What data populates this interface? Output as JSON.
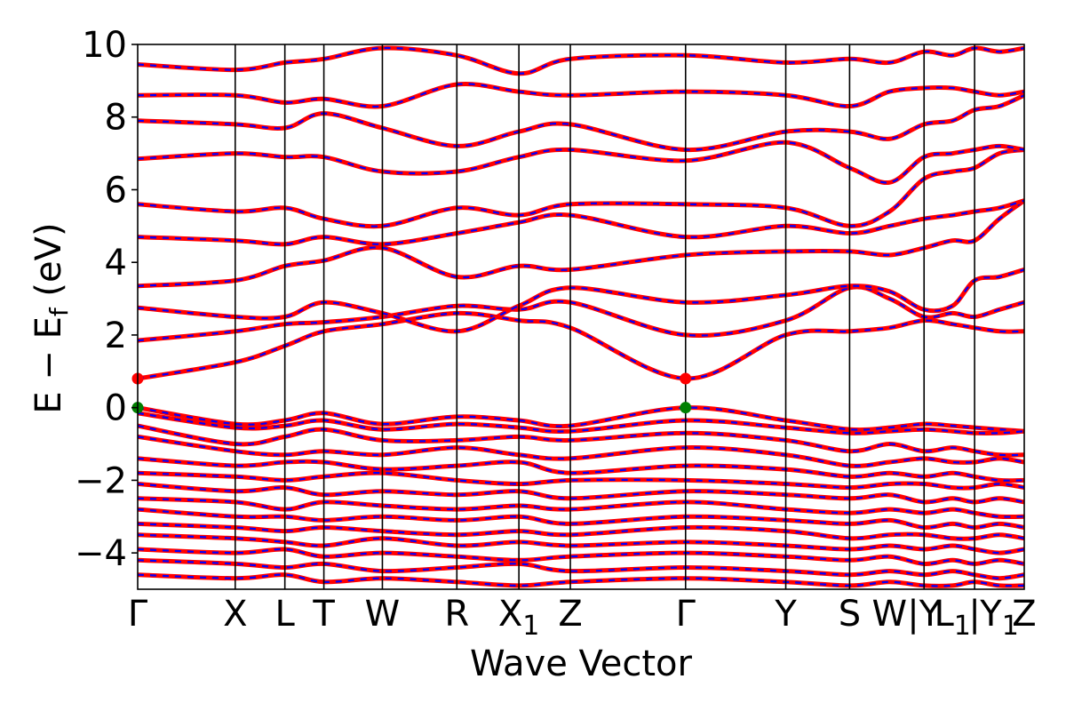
{
  "chart_data": {
    "type": "line",
    "title": "",
    "xlabel": "Wave Vector",
    "ylabel": "E − E_f (eV)",
    "ylabel_main": "E − E",
    "ylabel_sub": "f",
    "ylabel_unit": " (eV)",
    "ylim": [
      -5,
      10
    ],
    "yticks": [
      -4,
      -2,
      0,
      2,
      4,
      6,
      8,
      10
    ],
    "ytick_labels": [
      "−4",
      "−2",
      "0",
      "2",
      "4",
      "6",
      "8",
      "10"
    ],
    "grid": false,
    "legend": "none",
    "kpath": [
      {
        "label": "Γ",
        "sub": "",
        "x": 0.0
      },
      {
        "label": "X",
        "sub": "",
        "x": 0.11
      },
      {
        "label": "L",
        "sub": "",
        "x": 0.166
      },
      {
        "label": "T",
        "sub": "",
        "x": 0.21
      },
      {
        "label": "W",
        "sub": "",
        "x": 0.276
      },
      {
        "label": "R",
        "sub": "",
        "x": 0.36
      },
      {
        "label": "X",
        "sub": "1",
        "x": 0.43
      },
      {
        "label": "Z",
        "sub": "",
        "x": 0.488
      },
      {
        "label": "Γ",
        "sub": "",
        "x": 0.618
      },
      {
        "label": "Y",
        "sub": "",
        "x": 0.731
      },
      {
        "label": "S",
        "sub": "",
        "x": 0.803
      },
      {
        "label": "W",
        "sub": "",
        "x": 0.848
      },
      {
        "label": "|Y",
        "sub": "",
        "x": 0.887
      },
      {
        "label": "L",
        "sub": "1",
        "x": 0.919
      },
      {
        "label": "|",
        "sub": "",
        "x": 0.944
      },
      {
        "label": "Y",
        "sub": "1",
        "x": 0.972
      },
      {
        "label": "Z",
        "sub": "",
        "x": 1.0
      }
    ],
    "kpath_lines": [
      0.11,
      0.166,
      0.21,
      0.276,
      0.36,
      0.43,
      0.488,
      0.618,
      0.731,
      0.803,
      0.887,
      0.944
    ],
    "series": [
      {
        "color": "#ff0000",
        "style": "solid"
      },
      {
        "color": "#0000ff",
        "style": "dashed"
      }
    ],
    "bands": [
      {
        "y": [
          0.8,
          1.25,
          1.7,
          2.1,
          2.3,
          2.6,
          2.4,
          2.2,
          0.8,
          2.0,
          2.1,
          2.2,
          2.4,
          2.3,
          2.2,
          2.1,
          2.1
        ]
      },
      {
        "y": [
          1.85,
          2.1,
          2.3,
          2.35,
          2.5,
          2.8,
          2.7,
          2.9,
          2.0,
          2.4,
          3.3,
          3.0,
          2.5,
          2.6,
          2.5,
          2.7,
          2.9
        ]
      },
      {
        "y": [
          2.75,
          2.5,
          2.5,
          2.9,
          2.6,
          2.1,
          2.8,
          3.3,
          2.9,
          3.1,
          3.35,
          3.2,
          2.7,
          2.8,
          3.5,
          3.6,
          3.8
        ]
      },
      {
        "y": [
          3.35,
          3.5,
          3.9,
          4.05,
          4.4,
          3.6,
          3.9,
          3.8,
          4.2,
          4.3,
          4.3,
          4.2,
          4.4,
          4.6,
          4.6,
          5.2,
          5.7
        ]
      },
      {
        "y": [
          4.7,
          4.6,
          4.5,
          4.7,
          4.5,
          4.8,
          5.1,
          5.3,
          4.7,
          5.0,
          4.8,
          5.0,
          5.2,
          5.3,
          5.4,
          5.5,
          5.7
        ]
      },
      {
        "y": [
          5.6,
          5.4,
          5.5,
          5.2,
          5.0,
          5.5,
          5.3,
          5.6,
          5.6,
          5.5,
          5.0,
          5.4,
          6.3,
          6.5,
          6.6,
          7.0,
          7.1
        ]
      },
      {
        "y": [
          6.85,
          7.0,
          6.9,
          6.9,
          6.5,
          6.5,
          6.9,
          7.1,
          6.8,
          7.3,
          6.6,
          6.2,
          6.9,
          7.0,
          7.1,
          7.2,
          7.1
        ]
      },
      {
        "y": [
          7.9,
          7.8,
          7.7,
          8.1,
          7.7,
          7.2,
          7.6,
          7.8,
          7.1,
          7.6,
          7.6,
          7.4,
          7.8,
          7.9,
          8.2,
          8.3,
          8.6
        ]
      },
      {
        "y": [
          8.6,
          8.6,
          8.4,
          8.5,
          8.3,
          8.9,
          8.7,
          8.6,
          8.7,
          8.6,
          8.3,
          8.7,
          8.8,
          8.8,
          8.7,
          8.6,
          8.7
        ]
      },
      {
        "y": [
          9.45,
          9.3,
          9.5,
          9.6,
          9.9,
          9.7,
          9.2,
          9.6,
          9.7,
          9.5,
          9.6,
          9.5,
          9.8,
          9.7,
          9.9,
          9.8,
          9.9
        ]
      },
      {
        "y": [
          0.0,
          -0.45,
          -0.35,
          -0.15,
          -0.45,
          -0.25,
          -0.35,
          -0.5,
          0.0,
          -0.35,
          -0.6,
          -0.55,
          -0.45,
          -0.5,
          -0.55,
          -0.6,
          -0.65
        ]
      },
      {
        "y": [
          -0.15,
          -0.55,
          -0.5,
          -0.35,
          -0.6,
          -0.45,
          -0.55,
          -0.65,
          -0.35,
          -0.55,
          -0.7,
          -0.65,
          -0.6,
          -0.65,
          -0.7,
          -0.7,
          -0.65
        ]
      },
      {
        "y": [
          -0.5,
          -1.0,
          -0.8,
          -0.6,
          -0.9,
          -0.9,
          -0.8,
          -0.9,
          -0.7,
          -0.9,
          -1.2,
          -1.0,
          -1.2,
          -1.1,
          -1.2,
          -1.3,
          -1.3
        ]
      },
      {
        "y": [
          -0.8,
          -1.2,
          -1.3,
          -1.2,
          -1.3,
          -1.1,
          -1.3,
          -1.4,
          -1.1,
          -1.3,
          -1.6,
          -1.5,
          -1.4,
          -1.5,
          -1.5,
          -1.4,
          -1.5
        ]
      },
      {
        "y": [
          -1.4,
          -1.6,
          -1.5,
          -1.5,
          -1.7,
          -1.6,
          -1.5,
          -1.8,
          -1.6,
          -1.7,
          -1.9,
          -1.8,
          -1.9,
          -1.8,
          -1.9,
          -2.0,
          -2.0
        ]
      },
      {
        "y": [
          -1.8,
          -1.9,
          -2.0,
          -1.9,
          -1.8,
          -2.0,
          -2.1,
          -2.0,
          -2.0,
          -2.1,
          -2.2,
          -2.1,
          -2.1,
          -2.2,
          -2.2,
          -2.1,
          -2.2
        ]
      },
      {
        "y": [
          -2.1,
          -2.3,
          -2.2,
          -2.4,
          -2.3,
          -2.4,
          -2.3,
          -2.5,
          -2.3,
          -2.4,
          -2.5,
          -2.4,
          -2.6,
          -2.5,
          -2.6,
          -2.5,
          -2.6
        ]
      },
      {
        "y": [
          -2.5,
          -2.6,
          -2.8,
          -2.6,
          -2.7,
          -2.8,
          -2.7,
          -2.8,
          -2.6,
          -2.8,
          -2.9,
          -2.8,
          -2.9,
          -2.8,
          -2.9,
          -3.0,
          -3.0
        ]
      },
      {
        "y": [
          -2.8,
          -3.0,
          -3.0,
          -3.1,
          -3.0,
          -3.1,
          -3.0,
          -3.2,
          -3.0,
          -3.1,
          -3.2,
          -3.1,
          -3.3,
          -3.2,
          -3.3,
          -3.2,
          -3.3
        ]
      },
      {
        "y": [
          -3.2,
          -3.3,
          -3.4,
          -3.3,
          -3.4,
          -3.5,
          -3.4,
          -3.5,
          -3.3,
          -3.4,
          -3.6,
          -3.5,
          -3.5,
          -3.6,
          -3.6,
          -3.5,
          -3.6
        ]
      },
      {
        "y": [
          -3.5,
          -3.6,
          -3.7,
          -3.8,
          -3.6,
          -3.8,
          -3.7,
          -3.8,
          -3.7,
          -3.8,
          -3.9,
          -3.8,
          -3.9,
          -3.8,
          -3.9,
          -4.0,
          -3.9
        ]
      },
      {
        "y": [
          -3.9,
          -4.0,
          -3.9,
          -4.1,
          -4.0,
          -4.1,
          -4.2,
          -4.1,
          -4.0,
          -4.1,
          -4.2,
          -4.1,
          -4.3,
          -4.2,
          -4.3,
          -4.2,
          -4.3
        ]
      },
      {
        "y": [
          -4.2,
          -4.3,
          -4.4,
          -4.3,
          -4.5,
          -4.4,
          -4.3,
          -4.5,
          -4.4,
          -4.5,
          -4.6,
          -4.5,
          -4.6,
          -4.5,
          -4.6,
          -4.7,
          -4.6
        ]
      },
      {
        "y": [
          -4.6,
          -4.7,
          -4.6,
          -4.8,
          -4.7,
          -4.8,
          -4.9,
          -4.8,
          -4.7,
          -4.8,
          -4.9,
          -4.8,
          -4.9,
          -4.9,
          -4.8,
          -4.9,
          -4.9
        ]
      }
    ],
    "markers": [
      {
        "x": 0.0,
        "y": 0.8,
        "color": "#ff0000",
        "kind": "CBM"
      },
      {
        "x": 0.0,
        "y": 0.0,
        "color": "#008000",
        "kind": "VBM"
      },
      {
        "x": 0.618,
        "y": 0.8,
        "color": "#ff0000",
        "kind": "CBM"
      },
      {
        "x": 0.618,
        "y": 0.0,
        "color": "#008000",
        "kind": "VBM"
      }
    ]
  }
}
